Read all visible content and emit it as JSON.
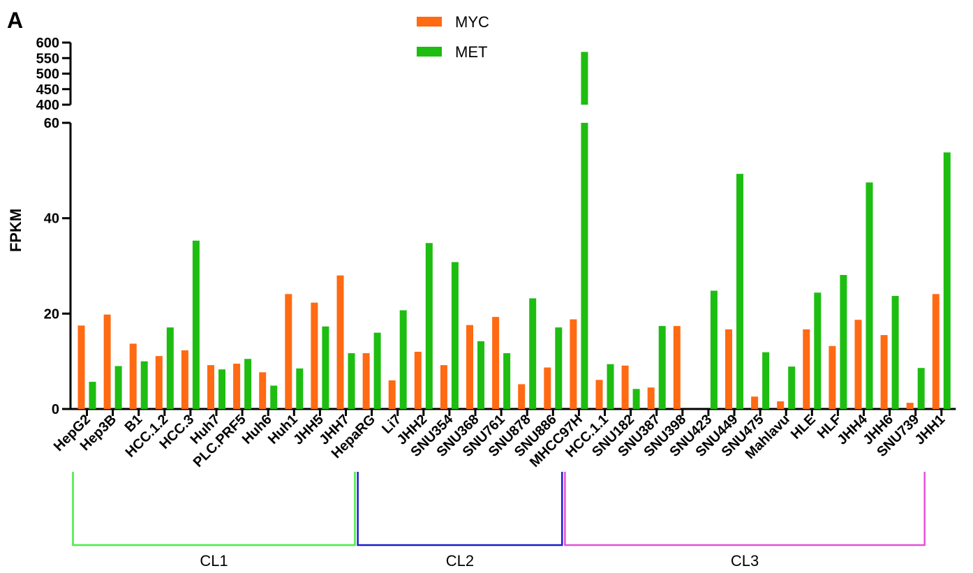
{
  "panel_label": "A",
  "chart_data": {
    "type": "bar",
    "xlabel": "",
    "ylabel": "FPKM",
    "y_segments": [
      {
        "range": [
          0,
          60
        ],
        "ticks": [
          0,
          20,
          40,
          60
        ]
      },
      {
        "range": [
          400,
          600
        ],
        "ticks": [
          400,
          450,
          500,
          550,
          600
        ]
      }
    ],
    "grid": false,
    "legend_position": "top-center",
    "categories": [
      "HepG2",
      "Hep3B",
      "B1",
      "HCC.1.2",
      "HCC.3",
      "Huh7",
      "PLC.PRF5",
      "Huh6",
      "Huh1",
      "JHH5",
      "JHH7",
      "HepaRG",
      "Li7",
      "JHH2",
      "SNU354",
      "SNU368",
      "SNU761",
      "SNU878",
      "SNU886",
      "MHCC97H",
      "HCC.1.1",
      "SNU182",
      "SNU387",
      "SNU398",
      "SNU423",
      "SNU449",
      "SNU475",
      "Mahlavu",
      "HLE",
      "HLF",
      "JHH4",
      "JHH6",
      "SNU739",
      "JHH1"
    ],
    "series": [
      {
        "name": "MYC",
        "color": "#ff6a13",
        "values": [
          17.5,
          19.8,
          13.7,
          11.1,
          12.3,
          9.2,
          9.5,
          7.7,
          24.1,
          22.3,
          28.0,
          11.7,
          6.0,
          12.0,
          9.2,
          17.6,
          19.3,
          5.2,
          8.7,
          18.8,
          6.1,
          9.1,
          4.5,
          17.4,
          0,
          16.7,
          2.6,
          1.6,
          16.7,
          13.2,
          18.7,
          15.5,
          1.3,
          24.1
        ]
      },
      {
        "name": "MET",
        "color": "#1ebd12",
        "values": [
          5.7,
          9.0,
          10.0,
          17.1,
          35.3,
          8.3,
          10.5,
          4.9,
          8.5,
          17.3,
          11.7,
          16.0,
          20.7,
          34.8,
          30.8,
          14.2,
          11.7,
          23.2,
          17.1,
          570,
          9.4,
          4.2,
          17.4,
          0,
          24.8,
          49.3,
          11.9,
          8.9,
          24.4,
          28.1,
          47.5,
          23.7,
          8.6,
          53.8
        ]
      }
    ]
  },
  "clusters": [
    {
      "label": "CL1",
      "from": "HepG2",
      "to": "JHH7",
      "color": "#44ee44"
    },
    {
      "label": "CL2",
      "from": "HepaRG",
      "to": "SNU886",
      "color": "#1a1acc"
    },
    {
      "label": "CL3",
      "from": "MHCC97H",
      "to": "SNU739",
      "color": "#e64fd6"
    }
  ]
}
